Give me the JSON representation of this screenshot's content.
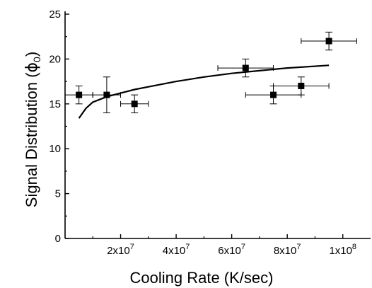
{
  "chart_data": {
    "type": "scatter",
    "xlabel": "Cooling Rate (K/sec)",
    "ylabel_main": "Signal Distribution (",
    "ylabel_symbol": "ϕ",
    "ylabel_sub": "0",
    "ylabel_close": ")",
    "xlim": [
      0,
      110000000
    ],
    "ylim": [
      0,
      25
    ],
    "grid": false,
    "legend": "none",
    "x_ticks": [
      {
        "value": 20000000,
        "mantissa": "2x10",
        "exp": "7"
      },
      {
        "value": 40000000,
        "mantissa": "4x10",
        "exp": "7"
      },
      {
        "value": 60000000,
        "mantissa": "6x10",
        "exp": "7"
      },
      {
        "value": 80000000,
        "mantissa": "8x10",
        "exp": "7"
      },
      {
        "value": 100000000,
        "mantissa": "1x10",
        "exp": "8"
      }
    ],
    "x_minor_ticks": [
      10000000,
      30000000,
      50000000,
      70000000,
      90000000
    ],
    "y_ticks": [
      {
        "value": 0,
        "label": "0"
      },
      {
        "value": 5,
        "label": "5"
      },
      {
        "value": 10,
        "label": "10"
      },
      {
        "value": 15,
        "label": "15"
      },
      {
        "value": 20,
        "label": "20"
      },
      {
        "value": 25,
        "label": "25"
      }
    ],
    "y_minor_ticks": [
      2.5,
      7.5,
      12.5,
      17.5,
      22.5
    ],
    "points": [
      {
        "x": 5000000,
        "y": 16,
        "xerr": 5000000,
        "yerr": 1
      },
      {
        "x": 15000000,
        "y": 16,
        "xerr": 5000000,
        "yerr": 2
      },
      {
        "x": 25000000,
        "y": 15,
        "xerr": 5000000,
        "yerr": 1
      },
      {
        "x": 65000000,
        "y": 19,
        "xerr": 10000000,
        "yerr": 1
      },
      {
        "x": 75000000,
        "y": 16,
        "xerr": 10000000,
        "yerr": 1
      },
      {
        "x": 85000000,
        "y": 17,
        "xerr": 10000000,
        "yerr": 1
      },
      {
        "x": 95000000,
        "y": 22,
        "xerr": 10000000,
        "yerr": 1
      }
    ],
    "fit_curve": [
      {
        "x": 5000000,
        "y": 13.4
      },
      {
        "x": 7500000,
        "y": 14.5
      },
      {
        "x": 10000000,
        "y": 15.2
      },
      {
        "x": 15000000,
        "y": 15.8
      },
      {
        "x": 20000000,
        "y": 16.2
      },
      {
        "x": 25000000,
        "y": 16.6
      },
      {
        "x": 30000000,
        "y": 16.9
      },
      {
        "x": 40000000,
        "y": 17.5
      },
      {
        "x": 50000000,
        "y": 18.0
      },
      {
        "x": 60000000,
        "y": 18.4
      },
      {
        "x": 70000000,
        "y": 18.7
      },
      {
        "x": 80000000,
        "y": 19.0
      },
      {
        "x": 95000000,
        "y": 19.3
      }
    ],
    "colors": {
      "marker": "#000000",
      "line": "#000000",
      "axis": "#000000"
    }
  }
}
